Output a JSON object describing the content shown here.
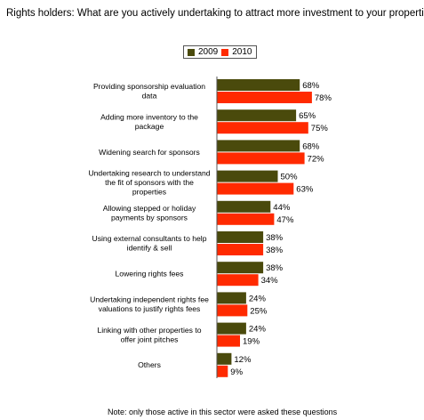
{
  "chart_data": {
    "type": "bar",
    "orientation": "horizontal",
    "title": "Rights holders: What are you actively undertaking to attract more investment to your properties?",
    "categories": [
      [
        "Providing sponsorship evaluation",
        "data"
      ],
      [
        "Adding more inventory to the",
        "package"
      ],
      [
        "Widening search for sponsors"
      ],
      [
        "Undertaking research to understand",
        "the fit of sponsors with the",
        "properties"
      ],
      [
        "Allowing stepped or holiday",
        "payments by sponsors"
      ],
      [
        "Using external consultants to help",
        "identify & sell"
      ],
      [
        "Lowering rights fees"
      ],
      [
        "Undertaking independent rights fee",
        "valuations to justify rights fees"
      ],
      [
        "Linking with other properties to",
        "offer joint pitches"
      ],
      [
        "Others"
      ]
    ],
    "series": [
      {
        "name": "2009",
        "values": [
          68,
          65,
          68,
          50,
          44,
          38,
          38,
          24,
          24,
          12
        ],
        "color": "#4a4a0c"
      },
      {
        "name": "2010",
        "values": [
          78,
          75,
          72,
          63,
          47,
          38,
          34,
          25,
          19,
          9
        ],
        "color": "#ff2a00"
      }
    ],
    "value_suffix": "%",
    "legend": "top",
    "grid": false
  },
  "footnote": "Note: only those active in this sector were asked these questions"
}
